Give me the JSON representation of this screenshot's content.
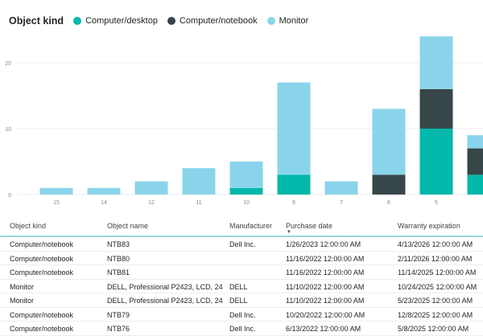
{
  "chart_data": {
    "type": "bar",
    "stacked": true,
    "legend_title": "Object kind",
    "categories": [
      "15",
      "14",
      "12",
      "11",
      "10",
      "9",
      "7",
      "6",
      "5",
      ""
    ],
    "series": [
      {
        "name": "Computer/desktop",
        "color": "#01B8AA",
        "values": [
          0,
          0,
          0,
          0,
          1,
          3,
          0,
          0,
          10,
          3
        ]
      },
      {
        "name": "Computer/notebook",
        "color": "#374649",
        "values": [
          0,
          0,
          0,
          0,
          0,
          0,
          0,
          3,
          6,
          4
        ]
      },
      {
        "name": "Monitor",
        "color": "#8AD4EB",
        "values": [
          1,
          1,
          2,
          4,
          4,
          14,
          2,
          10,
          8,
          2
        ]
      }
    ],
    "yticks": [
      "0",
      "10",
      "20"
    ],
    "ylim": [
      0,
      24
    ],
    "grid": true,
    "legend_position": "top-left"
  },
  "table": {
    "headers": [
      "Object kind",
      "Object name",
      "Manufacturer",
      "Purchase date",
      "Warranty expiration"
    ],
    "sorted_by": "Purchase date",
    "rows": [
      [
        "Computer/notebook",
        "NTB83",
        "Dell Inc.",
        "1/26/2023 12:00:00 AM",
        "4/13/2026 12:00:00 AM"
      ],
      [
        "Computer/notebook",
        "NTB80",
        "",
        "11/16/2022 12:00:00 AM",
        "2/11/2026 12:00:00 AM"
      ],
      [
        "Computer/notebook",
        "NTB81",
        "",
        "11/16/2022 12:00:00 AM",
        "11/14/2025 12:00:00 AM"
      ],
      [
        "Monitor",
        "DELL, Professional P2423, LCD, 24",
        "DELL",
        "11/10/2022 12:00:00 AM",
        "10/24/2025 12:00:00 AM"
      ],
      [
        "Monitor",
        "DELL, Professional P2423, LCD, 24",
        "DELL",
        "11/10/2022 12:00:00 AM",
        "5/23/2025 12:00:00 AM"
      ],
      [
        "Computer/notebook",
        "NTB79",
        "Dell Inc.",
        "10/20/2022 12:00:00 AM",
        "12/8/2025 12:00:00 AM"
      ],
      [
        "Computer/notebook",
        "NTB76",
        "Dell Inc.",
        "6/13/2022 12:00:00 AM",
        "5/8/2025 12:00:00 AM"
      ]
    ]
  }
}
